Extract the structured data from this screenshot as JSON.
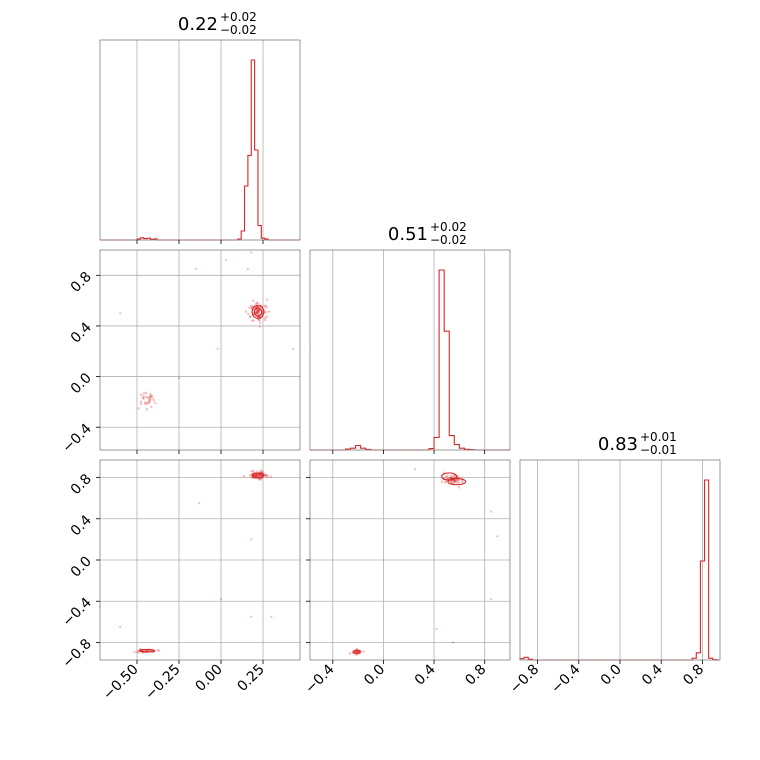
{
  "chart_data": {
    "type": "corner",
    "color": "#d62728",
    "grid": true,
    "parameters": [
      {
        "range": [
          -0.72,
          0.47
        ],
        "ticks": [
          -0.5,
          -0.25,
          0.0,
          0.25
        ],
        "tick_labels": [
          "−0.50",
          "−0.25",
          "0.00",
          "0.25"
        ]
      },
      {
        "range": [
          -0.58,
          1.0
        ],
        "ticks": [
          -0.4,
          0.0,
          0.4,
          0.8
        ],
        "tick_labels": [
          "−0.4",
          "0.0",
          "0.4",
          "0.8"
        ]
      },
      {
        "range": [
          -0.97,
          0.97
        ],
        "ticks": [
          -0.8,
          -0.4,
          0.0,
          0.4,
          0.8
        ],
        "tick_labels": [
          "−0.8",
          "−0.4",
          "0.0",
          "0.4",
          "0.8"
        ]
      }
    ],
    "titles": [
      {
        "value": "0.22",
        "plus": "+0.02",
        "minus": "−0.02"
      },
      {
        "value": "0.51",
        "plus": "+0.02",
        "minus": "−0.02"
      },
      {
        "value": "0.83",
        "plus": "+0.01",
        "minus": "−0.01"
      }
    ],
    "histograms": [
      {
        "bin_edges": [
          -0.52,
          -0.5,
          -0.48,
          -0.46,
          -0.44,
          -0.42,
          -0.4,
          -0.38,
          -0.36,
          0.1,
          0.12,
          0.14,
          0.16,
          0.18,
          0.2,
          0.22,
          0.24,
          0.26,
          0.28,
          0.3,
          0.32
        ],
        "counts": [
          0,
          0.005,
          0.012,
          0.008,
          0.01,
          0.004,
          0.006,
          0,
          0,
          0.005,
          0.05,
          0.3,
          0.47,
          1.0,
          0.5,
          0.08,
          0.01,
          0.005,
          0,
          0
        ]
      },
      {
        "bin_edges": [
          -0.3,
          -0.26,
          -0.22,
          -0.18,
          -0.14,
          -0.1,
          0.36,
          0.4,
          0.44,
          0.48,
          0.52,
          0.56,
          0.6,
          0.64,
          0.68,
          0.72,
          0.76
        ],
        "counts": [
          0.005,
          0.01,
          0.025,
          0.01,
          0.003,
          0,
          0.008,
          0.07,
          1.0,
          0.66,
          0.08,
          0.03,
          0.01,
          0.004,
          0.002,
          0
        ]
      },
      {
        "bin_edges": [
          -0.97,
          -0.93,
          -0.89,
          -0.85,
          -0.81,
          0.7,
          0.74,
          0.78,
          0.82,
          0.86,
          0.9,
          0.94
        ],
        "counts": [
          0.008,
          0.015,
          0.004,
          0,
          0,
          0.01,
          0.04,
          0.55,
          1.0,
          0.01,
          0.002
        ]
      }
    ],
    "panels_2d": [
      {
        "x_param": 0,
        "y_param": 1,
        "clusters": [
          {
            "center": [
              0.22,
              0.51
            ],
            "spread": [
              0.045,
              0.065
            ],
            "n": 90
          },
          {
            "center": [
              -0.44,
              -0.19
            ],
            "spread": [
              0.045,
              0.05
            ],
            "n": 30
          }
        ],
        "outliers": [
          [
            -0.6,
            0.5
          ],
          [
            -0.15,
            0.85
          ],
          [
            0.03,
            0.92
          ],
          [
            0.18,
            0.98
          ],
          [
            -0.25,
            -0.01
          ],
          [
            -0.02,
            0.22
          ],
          [
            0.43,
            0.22
          ],
          [
            0.16,
            0.85
          ]
        ],
        "contours": [
          {
            "center": [
              0.22,
              0.51
            ],
            "radii": [
              0.035,
              0.05
            ]
          },
          {
            "center": [
              0.22,
              0.51
            ],
            "radii": [
              0.022,
              0.032
            ]
          }
        ]
      },
      {
        "x_param": 0,
        "y_param": 2,
        "clusters": [
          {
            "center": [
              0.22,
              0.82
            ],
            "spread": [
              0.045,
              0.03
            ],
            "n": 80
          },
          {
            "center": [
              -0.44,
              -0.88
            ],
            "spread": [
              0.05,
              0.015
            ],
            "n": 30
          }
        ],
        "outliers": [
          [
            -0.72,
            -0.45
          ],
          [
            -0.6,
            -0.65
          ],
          [
            -0.13,
            0.55
          ],
          [
            0.18,
            0.2
          ],
          [
            0.0,
            -0.38
          ],
          [
            0.3,
            -0.55
          ],
          [
            0.18,
            -0.55
          ]
        ],
        "contours": [
          {
            "center": [
              0.22,
              0.82
            ],
            "radii": [
              0.035,
              0.022
            ]
          },
          {
            "center": [
              -0.44,
              -0.88
            ],
            "radii": [
              0.045,
              0.012
            ]
          }
        ]
      },
      {
        "x_param": 1,
        "y_param": 2,
        "clusters": [
          {
            "center": [
              0.55,
              0.78
            ],
            "spread": [
              0.06,
              0.04
            ],
            "n": 60
          },
          {
            "center": [
              -0.21,
              -0.89
            ],
            "spread": [
              0.03,
              0.02
            ],
            "n": 30
          }
        ],
        "outliers": [
          [
            0.25,
            0.88
          ],
          [
            0.42,
            -0.67
          ],
          [
            0.85,
            0.47
          ],
          [
            0.9,
            0.23
          ],
          [
            0.85,
            -0.38
          ],
          [
            0.55,
            -0.8
          ]
        ],
        "contours": [
          {
            "center": [
              0.52,
              0.81
            ],
            "radii": [
              0.06,
              0.035
            ]
          },
          {
            "center": [
              0.58,
              0.76
            ],
            "radii": [
              0.07,
              0.03
            ]
          },
          {
            "center": [
              -0.21,
              -0.89
            ],
            "radii": [
              0.025,
              0.015
            ]
          }
        ]
      }
    ]
  }
}
